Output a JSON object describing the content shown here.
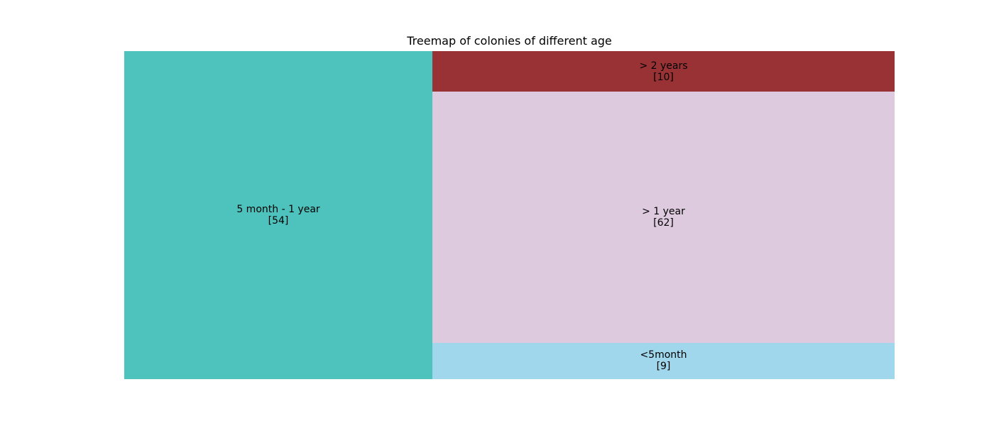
{
  "chart_data": {
    "type": "treemap",
    "title": "Treemap of colonies of different age",
    "items": [
      {
        "label": "5 month - 1 year",
        "value": 54,
        "display": "5 month - 1 year\n[54]",
        "color": "#4ec3bd"
      },
      {
        "label": "> 2 years",
        "value": 10,
        "display": "> 2 years\n[10]",
        "color": "#993234"
      },
      {
        "label": "> 1 year",
        "value": 62,
        "display": "> 1 year\n[62]",
        "color": "#ddcadf"
      },
      {
        "label": "<5month",
        "value": 9,
        "display": "<5month\n[9]",
        "color": "#a0d7ec"
      }
    ]
  }
}
